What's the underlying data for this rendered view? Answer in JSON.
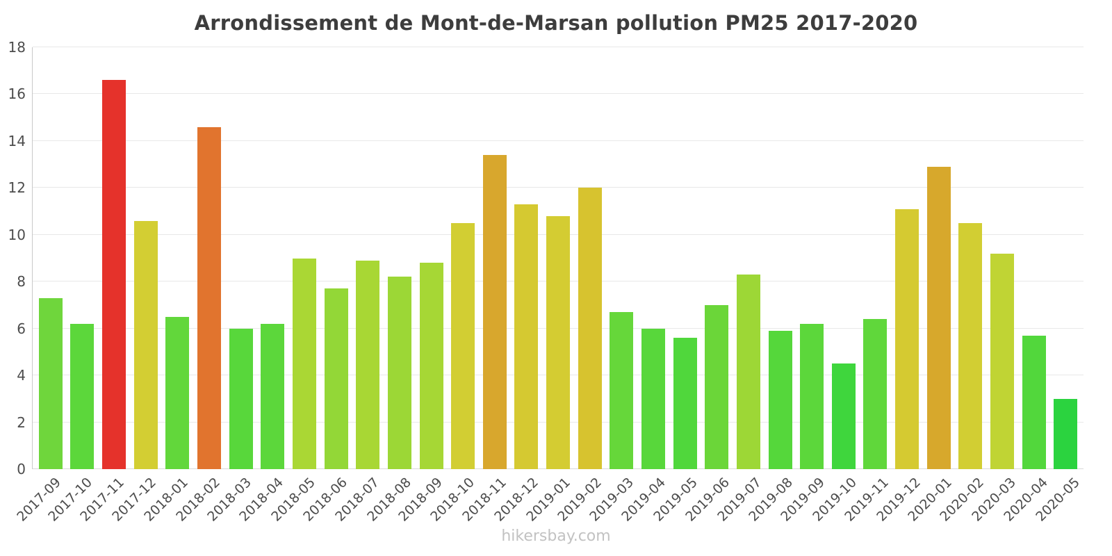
{
  "page": {
    "title": "Arrondissement de Mont-de-Marsan pollution PM25 2017-2020",
    "footer": "hikersbay.com"
  },
  "chart_data": {
    "type": "bar",
    "title": "Arrondissement de Mont-de-Marsan pollution PM25 2017-2020",
    "xlabel": "",
    "ylabel": "",
    "ylim": [
      0,
      18
    ],
    "ytick_step": 2,
    "grid": true,
    "legend": "none",
    "categories": [
      "2017-09",
      "2017-10",
      "2017-11",
      "2017-12",
      "2018-01",
      "2018-02",
      "2018-03",
      "2018-04",
      "2018-05",
      "2018-06",
      "2018-07",
      "2018-08",
      "2018-09",
      "2018-10",
      "2018-11",
      "2018-12",
      "2019-01",
      "2019-02",
      "2019-03",
      "2019-04",
      "2019-05",
      "2019-06",
      "2019-07",
      "2019-08",
      "2019-09",
      "2019-10",
      "2019-11",
      "2019-12",
      "2020-01",
      "2020-02",
      "2020-03",
      "2020-04",
      "2020-05"
    ],
    "values": [
      7.3,
      6.2,
      16.6,
      10.6,
      6.5,
      14.6,
      6.0,
      6.2,
      9.0,
      7.7,
      8.9,
      8.2,
      8.8,
      10.5,
      13.4,
      11.3,
      10.8,
      12.0,
      6.7,
      6.0,
      5.6,
      7.0,
      8.3,
      5.9,
      6.2,
      4.5,
      6.4,
      11.1,
      12.9,
      10.5,
      9.2,
      5.7,
      3.0
    ],
    "colors": [
      "#6fd63c",
      "#5cd73b",
      "#e5322b",
      "#d3ce33",
      "#62d73b",
      "#e1742e",
      "#58d73b",
      "#5cd73b",
      "#aad734",
      "#93d737",
      "#a8d734",
      "#9cd736",
      "#a6d735",
      "#d2ce33",
      "#d8a72d",
      "#d5c931",
      "#d4cc32",
      "#d7c32f",
      "#66d73a",
      "#58d73b",
      "#50d73c",
      "#6bd639",
      "#9dd736",
      "#55d73b",
      "#5cd73b",
      "#3fd63d",
      "#60d73b",
      "#d5ca31",
      "#d7a82c",
      "#d2ce33",
      "#c0d434",
      "#52d73c",
      "#2bd33f"
    ]
  }
}
